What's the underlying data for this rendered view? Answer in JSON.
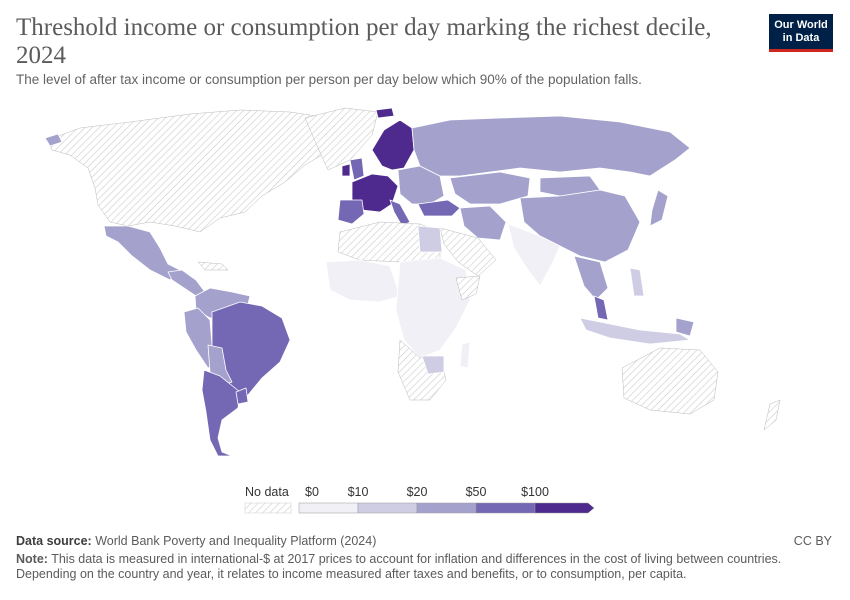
{
  "header": {
    "title": "Threshold income or consumption per day marking the richest decile, 2024",
    "subtitle": "The level of after tax income or consumption per person per day below which 90% of the population falls."
  },
  "logo": {
    "line1": "Our World",
    "line2": "in Data"
  },
  "legend": {
    "no_data_label": "No data",
    "bins": [
      {
        "label": "$0",
        "color": "#f0f0f6"
      },
      {
        "label": "$10",
        "color": "#cfcde4"
      },
      {
        "label": "$20",
        "color": "#a4a2cd"
      },
      {
        "label": "$50",
        "color": "#7468b4"
      },
      {
        "label": "$100",
        "color": "#4e2a8e"
      }
    ]
  },
  "footer": {
    "source_label": "Data source:",
    "source_text": "World Bank Poverty and Inequality Platform (2024)",
    "license": "CC BY",
    "note_label": "Note:",
    "note_text": "This data is measured in international-$ at 2017 prices to account for inflation and differences in the cost of living between countries. Depending on the country and year, it relates to income measured after taxes and benefits, or to consumption, per capita."
  },
  "colors": {
    "no_data": "#ececec",
    "border": "#ffffff",
    "hatch": "#cccccc"
  }
}
